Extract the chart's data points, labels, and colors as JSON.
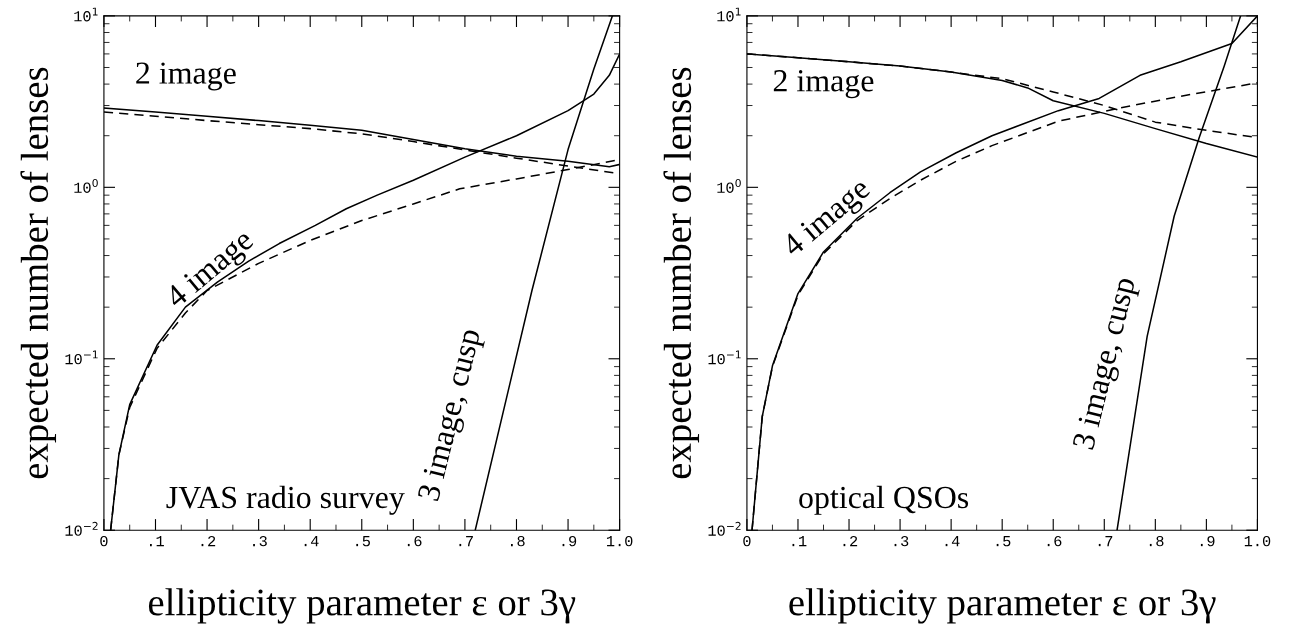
{
  "chart_data": [
    {
      "type": "line",
      "xlabel": "ellipticity parameter ε or 3γ",
      "ylabel": "expected number of lenses",
      "log": "y",
      "grid": false,
      "legend": false,
      "marker": "none",
      "xlim": [
        0,
        1
      ],
      "ylim": [
        0.01,
        10
      ],
      "xticks": [
        0,
        {
          "value": 0.1,
          "label": ".1"
        },
        {
          "value": 0.2,
          "label": ".2"
        },
        {
          "value": 0.3,
          "label": ".3"
        },
        {
          "value": 0.4,
          "label": ".4"
        },
        {
          "value": 0.5,
          "label": ".5"
        },
        {
          "value": 0.6,
          "label": ".6"
        },
        {
          "value": 0.7,
          "label": ".7"
        },
        {
          "value": 0.8,
          "label": ".8"
        },
        {
          "value": 0.9,
          "label": ".9"
        },
        {
          "value": 1,
          "label": "1.0"
        }
      ],
      "yticks": [
        {
          "value": 0.01,
          "label": "10$^{−2}$"
        },
        {
          "value": 0.1,
          "label": "10$^{−1}$"
        },
        {
          "value": 1,
          "label": "10$^{0}$"
        },
        {
          "value": 10,
          "label": "10$^{1}$"
        }
      ],
      "series": [
        {
          "color": "#000000",
          "line_style": "solid",
          "x": [
            0,
            0.1,
            0.2,
            0.3,
            0.4,
            0.5,
            0.6,
            0.7,
            0.8,
            0.9,
            0.98,
            1.0
          ],
          "values": [
            2.9,
            2.75,
            2.6,
            2.45,
            2.3,
            2.15,
            1.9,
            1.68,
            1.52,
            1.42,
            1.32,
            1.36
          ]
        },
        {
          "color": "#000000",
          "line_style": "dashed",
          "x": [
            0,
            0.1,
            0.2,
            0.3,
            0.4,
            0.5,
            0.6,
            0.7,
            0.8,
            0.9,
            1.0
          ],
          "values": [
            2.75,
            2.6,
            2.45,
            2.32,
            2.2,
            2.05,
            1.85,
            1.65,
            1.48,
            1.33,
            1.2
          ]
        },
        {
          "color": "#000000",
          "line_style": "solid",
          "x": [
            0.013,
            0.029,
            0.05,
            0.103,
            0.158,
            0.22,
            0.28,
            0.34,
            0.41,
            0.47,
            0.53,
            0.6,
            0.7,
            0.8,
            0.9,
            0.95,
            0.98,
            1.0
          ],
          "values": [
            0.01,
            0.0275,
            0.054,
            0.12,
            0.2,
            0.28,
            0.37,
            0.47,
            0.6,
            0.75,
            0.9,
            1.1,
            1.5,
            2.0,
            2.8,
            3.5,
            4.5,
            6.0
          ]
        },
        {
          "color": "#000000",
          "line_style": "dashed",
          "x": [
            0.013,
            0.029,
            0.05,
            0.103,
            0.158,
            0.2,
            0.3,
            0.4,
            0.5,
            0.6,
            0.69,
            0.8,
            0.9,
            1.0
          ],
          "values": [
            0.01,
            0.0275,
            0.052,
            0.115,
            0.185,
            0.25,
            0.36,
            0.49,
            0.64,
            0.8,
            0.98,
            1.12,
            1.27,
            1.45
          ]
        },
        {
          "color": "#000000",
          "line_style": "solid",
          "x": [
            0.72,
            0.83,
            0.9,
            0.95,
            0.986
          ],
          "values": [
            0.01,
            0.25,
            1.66,
            4.9,
            10
          ]
        }
      ],
      "annotations": [
        "2 image",
        "4 image",
        "3 image, cusp",
        "JVAS radio survey"
      ]
    },
    {
      "type": "line",
      "xlabel": "ellipticity parameter ε or 3γ",
      "ylabel": "expected number of lenses",
      "log": "y",
      "grid": false,
      "legend": false,
      "marker": "none",
      "xlim": [
        0,
        1
      ],
      "ylim": [
        0.01,
        10
      ],
      "xticks": [
        0,
        {
          "value": 0.1,
          "label": ".1"
        },
        {
          "value": 0.2,
          "label": ".2"
        },
        {
          "value": 0.3,
          "label": ".3"
        },
        {
          "value": 0.4,
          "label": ".4"
        },
        {
          "value": 0.5,
          "label": ".5"
        },
        {
          "value": 0.6,
          "label": ".6"
        },
        {
          "value": 0.7,
          "label": ".7"
        },
        {
          "value": 0.8,
          "label": ".8"
        },
        {
          "value": 0.9,
          "label": ".9"
        },
        {
          "value": 1,
          "label": "1.0"
        }
      ],
      "yticks": [
        {
          "value": 0.01,
          "label": "10$^{−2}$"
        },
        {
          "value": 0.1,
          "label": "10$^{−1}$"
        },
        {
          "value": 1,
          "label": "10$^{0}$"
        },
        {
          "value": 10,
          "label": "10$^{1}$"
        }
      ],
      "series": [
        {
          "color": "#000000",
          "line_style": "solid",
          "x": [
            0,
            0.1,
            0.2,
            0.3,
            0.4,
            0.5,
            0.55,
            0.6,
            0.7,
            0.8,
            0.9,
            1.0
          ],
          "values": [
            6.0,
            5.7,
            5.4,
            5.1,
            4.7,
            4.2,
            3.8,
            3.2,
            2.7,
            2.2,
            1.8,
            1.5
          ]
        },
        {
          "color": "#000000",
          "line_style": "dashed",
          "x": [
            0,
            0.1,
            0.2,
            0.3,
            0.4,
            0.5,
            0.6,
            0.7,
            0.8,
            0.9,
            1.0
          ],
          "values": [
            6.0,
            5.7,
            5.4,
            5.1,
            4.7,
            4.3,
            3.6,
            3.0,
            2.4,
            2.15,
            1.95
          ]
        },
        {
          "color": "#000000",
          "line_style": "solid",
          "x": [
            0.01,
            0.03,
            0.05,
            0.1,
            0.15,
            0.216,
            0.28,
            0.34,
            0.41,
            0.48,
            0.61,
            0.69,
            0.77,
            0.85,
            0.95,
            1.0
          ],
          "values": [
            0.01,
            0.046,
            0.091,
            0.24,
            0.42,
            0.66,
            0.93,
            1.23,
            1.59,
            2.0,
            2.8,
            3.3,
            4.5,
            5.4,
            6.9,
            10
          ]
        },
        {
          "color": "#000000",
          "line_style": "dashed",
          "x": [
            0.01,
            0.03,
            0.05,
            0.1,
            0.15,
            0.216,
            0.28,
            0.34,
            0.41,
            0.48,
            0.61,
            0.73,
            0.85,
            1.0
          ],
          "values": [
            0.01,
            0.046,
            0.09,
            0.235,
            0.41,
            0.64,
            0.86,
            1.1,
            1.42,
            1.75,
            2.43,
            2.9,
            3.4,
            4.07
          ]
        },
        {
          "color": "#000000",
          "line_style": "solid",
          "x": [
            0.725,
            0.784,
            0.837,
            0.886,
            0.935,
            0.967
          ],
          "values": [
            0.01,
            0.135,
            0.68,
            1.95,
            5.1,
            10
          ]
        }
      ],
      "annotations": [
        "2 image",
        "4 image",
        "3 image, cusp",
        "optical QSOs"
      ]
    }
  ]
}
